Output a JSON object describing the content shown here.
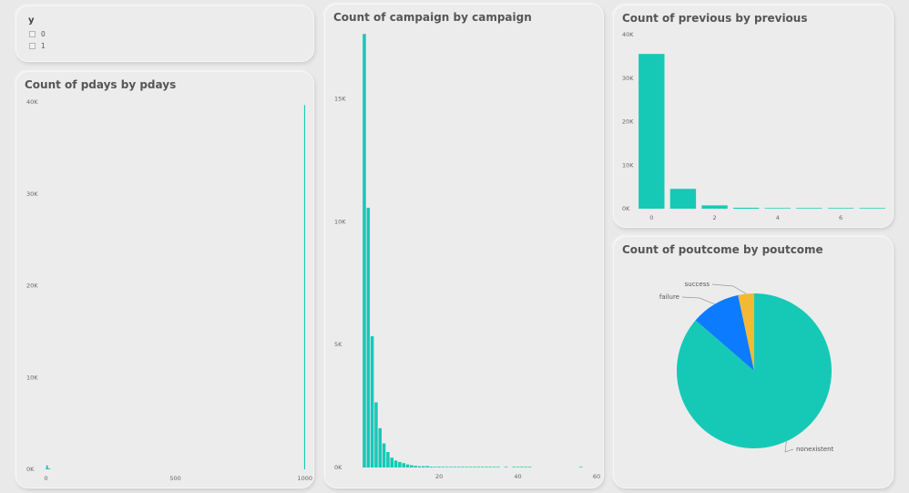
{
  "slicer": {
    "title": "y",
    "options": [
      "0",
      "1"
    ]
  },
  "chart_data": [
    {
      "id": "pdays",
      "type": "bar",
      "title": "Count of pdays by pdays",
      "color": "#16c9b6",
      "x_ticks": [
        0,
        500,
        1000
      ],
      "x_tick_labels": [
        "0",
        "500",
        "1000"
      ],
      "xlim": [
        -5,
        1015
      ],
      "y_ticks": [
        0,
        10000,
        20000,
        30000,
        40000
      ],
      "y_tick_labels": [
        "0K",
        "10K",
        "20K",
        "30K",
        "40K"
      ],
      "ylim": [
        0,
        40000
      ],
      "x": [
        0,
        1,
        2,
        3,
        4,
        5,
        6,
        7,
        8,
        9,
        10,
        11,
        12,
        13,
        14,
        15,
        999
      ],
      "values": [
        15,
        26,
        61,
        439,
        118,
        46,
        412,
        60,
        18,
        64,
        52,
        28,
        58,
        36,
        20,
        24,
        39673
      ]
    },
    {
      "id": "campaign",
      "type": "bar",
      "title": "Count of campaign by campaign",
      "color": "#16c9b6",
      "x_ticks": [
        20,
        40,
        60
      ],
      "x_tick_labels": [
        "20",
        "40",
        "60"
      ],
      "xlim": [
        -2,
        60
      ],
      "y_ticks": [
        0,
        5000,
        10000,
        15000
      ],
      "y_tick_labels": [
        "0K",
        "5K",
        "10K",
        "15K"
      ],
      "ylim": [
        0,
        17800
      ],
      "x": [
        1,
        2,
        3,
        4,
        5,
        6,
        7,
        8,
        9,
        10,
        11,
        12,
        13,
        14,
        15,
        16,
        17,
        18,
        19,
        20,
        21,
        22,
        23,
        24,
        25,
        26,
        27,
        28,
        29,
        30,
        31,
        32,
        33,
        34,
        35,
        37,
        39,
        40,
        41,
        42,
        43,
        56
      ],
      "values": [
        17642,
        10570,
        5341,
        2651,
        1599,
        979,
        629,
        400,
        283,
        225,
        177,
        125,
        92,
        69,
        51,
        51,
        58,
        33,
        26,
        30,
        24,
        17,
        16,
        15,
        8,
        8,
        11,
        8,
        10,
        7,
        7,
        4,
        4,
        5,
        5,
        1,
        1,
        2,
        1,
        2,
        2,
        1
      ]
    },
    {
      "id": "previous",
      "type": "bar",
      "title": "Count of previous by previous",
      "color": "#16c9b6",
      "x_ticks": [
        0,
        2,
        4,
        6
      ],
      "x_tick_labels": [
        "0",
        "2",
        "4",
        "6"
      ],
      "xlim": [
        -0.5,
        7.5
      ],
      "y_ticks": [
        0,
        10000,
        20000,
        30000,
        40000
      ],
      "y_tick_labels": [
        "0K",
        "10K",
        "20K",
        "30K",
        "40K"
      ],
      "ylim": [
        0,
        40000
      ],
      "x": [
        0,
        1,
        2,
        3,
        4,
        5,
        6,
        7
      ],
      "values": [
        35563,
        4561,
        754,
        216,
        70,
        18,
        5,
        1
      ]
    },
    {
      "id": "poutcome",
      "type": "pie",
      "title": "Count of poutcome by poutcome",
      "slices": [
        {
          "label": "nonexistent",
          "value": 35563,
          "color": "#16c9b6"
        },
        {
          "label": "failure",
          "value": 4252,
          "color": "#0c7bff"
        },
        {
          "label": "success",
          "value": 1373,
          "color": "#f3b935"
        }
      ]
    }
  ]
}
